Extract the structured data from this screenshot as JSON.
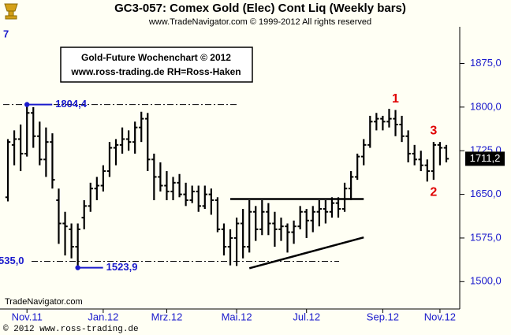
{
  "chart_data": {
    "type": "ohlc",
    "title": "GC3-057:  Comex Gold (Elec) Cont Liq  (Weekly bars)",
    "subtitle": "www.TradeNavigator.com © 1999-2012 All rights reserved",
    "info_box": [
      "Gold-Future Wochenchart © 2012",
      "www.ross-trading.de  RH=Ross-Haken"
    ],
    "edge_label": "7",
    "watermark": "TradeNavigator.com",
    "footer": "© 2012  www.ross-trading.de",
    "categories": [
      null,
      null,
      null,
      "Nov.11",
      null,
      null,
      null,
      null,
      null,
      null,
      null,
      null,
      null,
      null,
      null,
      "Jan.12",
      null,
      null,
      null,
      null,
      null,
      null,
      null,
      null,
      null,
      "Mrz.12",
      null,
      null,
      null,
      null,
      null,
      null,
      null,
      null,
      null,
      null,
      "Mai.12",
      null,
      null,
      null,
      null,
      null,
      null,
      null,
      null,
      null,
      null,
      "Jul.12",
      null,
      null,
      null,
      null,
      null,
      null,
      null,
      null,
      null,
      null,
      null,
      "Sep.12",
      null,
      null,
      null,
      null,
      null,
      null,
      null,
      null,
      "Nov.12",
      null
    ],
    "open": [
      1645,
      1735,
      1745,
      1720,
      1790,
      1750,
      1710,
      1740,
      1640,
      1600,
      1590,
      1560,
      1610,
      1630,
      1660,
      1665,
      1690,
      1730,
      1735,
      1745,
      1740,
      1765,
      1780,
      1710,
      1680,
      1665,
      1655,
      1670,
      1650,
      1640,
      1655,
      1630,
      1650,
      1640,
      1590,
      1560,
      1575,
      1600,
      1560,
      1620,
      1590,
      1620,
      1600,
      1590,
      1595,
      1585,
      1595,
      1620,
      1605,
      1620,
      1625,
      1620,
      1635,
      1625,
      1660,
      1680,
      1715,
      1735,
      1775,
      1780,
      1775,
      1780,
      1770,
      1750,
      1720,
      1710,
      1700,
      1690,
      1735,
      1730
    ],
    "high": [
      1745,
      1760,
      1770,
      1804.4,
      1800,
      1775,
      1765,
      1755,
      1660,
      1620,
      1600,
      1600,
      1640,
      1670,
      1680,
      1700,
      1740,
      1745,
      1765,
      1760,
      1775,
      1792,
      1790,
      1720,
      1705,
      1690,
      1680,
      1685,
      1670,
      1665,
      1665,
      1665,
      1660,
      1645,
      1600,
      1590,
      1610,
      1625,
      1640,
      1630,
      1640,
      1635,
      1620,
      1610,
      1600,
      1605,
      1630,
      1625,
      1630,
      1640,
      1640,
      1645,
      1645,
      1670,
      1690,
      1720,
      1745,
      1785,
      1790,
      1785,
      1797,
      1795,
      1785,
      1760,
      1735,
      1725,
      1710,
      1740,
      1740,
      1735
    ],
    "low": [
      1638,
      1700,
      1690,
      1715,
      1730,
      1700,
      1680,
      1660,
      1565,
      1545,
      1540,
      1523.9,
      1590,
      1620,
      1640,
      1655,
      1680,
      1700,
      1720,
      1725,
      1720,
      1740,
      1690,
      1640,
      1655,
      1640,
      1640,
      1645,
      1630,
      1635,
      1620,
      1625,
      1615,
      1585,
      1545,
      1528,
      1527,
      1540,
      1550,
      1570,
      1580,
      1580,
      1560,
      1570,
      1550,
      1565,
      1590,
      1575,
      1585,
      1595,
      1600,
      1610,
      1610,
      1620,
      1640,
      1675,
      1700,
      1730,
      1760,
      1760,
      1765,
      1750,
      1740,
      1705,
      1700,
      1690,
      1672,
      1675,
      1700,
      1705
    ],
    "close": [
      1740,
      1745,
      1720,
      1790,
      1750,
      1710,
      1740,
      1675,
      1600,
      1595,
      1560,
      1590,
      1630,
      1660,
      1665,
      1690,
      1730,
      1735,
      1745,
      1740,
      1765,
      1780,
      1710,
      1680,
      1665,
      1655,
      1670,
      1650,
      1640,
      1655,
      1630,
      1650,
      1640,
      1590,
      1560,
      1575,
      1600,
      1560,
      1620,
      1590,
      1620,
      1600,
      1590,
      1595,
      1585,
      1595,
      1620,
      1605,
      1620,
      1625,
      1620,
      1635,
      1625,
      1660,
      1680,
      1715,
      1735,
      1775,
      1780,
      1775,
      1780,
      1770,
      1750,
      1720,
      1710,
      1700,
      1690,
      1735,
      1730,
      1711.2
    ],
    "color": "#000000",
    "ylim": [
      1453,
      1938
    ],
    "yticks": [
      {
        "value": 1500,
        "label": "1500,0"
      },
      {
        "value": 1575,
        "label": "1575,0"
      },
      {
        "value": 1650,
        "label": "1650,0"
      },
      {
        "value": 1725,
        "label": "1725,0"
      },
      {
        "value": 1800,
        "label": "1800,0"
      },
      {
        "value": 1875,
        "label": "1875,0"
      }
    ],
    "last_price": {
      "value": 1711.2,
      "label": "1711,2"
    },
    "levels": [
      {
        "value": 1804.4
      },
      {
        "value": 1535.0,
        "label": "535,0"
      }
    ],
    "markers": [
      {
        "bar": 3,
        "value": 1804.4,
        "label": "1804,4"
      },
      {
        "bar": 11,
        "value": 1523.9,
        "label": "1523,9"
      }
    ],
    "trendlines": [
      {
        "bars": [
          35,
          56
        ],
        "values": [
          1642,
          1642
        ]
      },
      {
        "bars": [
          38,
          56
        ],
        "values": [
          1523,
          1576
        ]
      }
    ],
    "wave_labels": [
      {
        "text": "1",
        "bar": 61,
        "side": "above"
      },
      {
        "text": "3",
        "bar": 67,
        "side": "above"
      },
      {
        "text": "2",
        "bar": 67,
        "side": "below"
      }
    ]
  }
}
